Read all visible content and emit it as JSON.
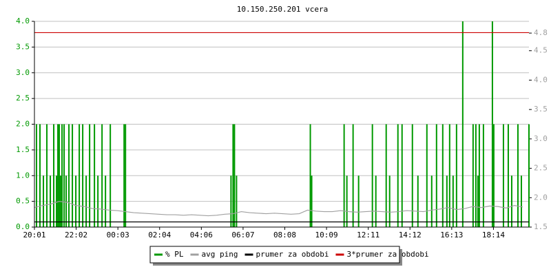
{
  "chart_data": {
    "type": "line",
    "title": "10.150.250.201 vcera",
    "xlim": [
      0,
      1434
    ],
    "xticks": [
      {
        "value": 0,
        "label": "20:01"
      },
      {
        "value": 121,
        "label": "22:02"
      },
      {
        "value": 242,
        "label": "00:03"
      },
      {
        "value": 363,
        "label": "02:04"
      },
      {
        "value": 484,
        "label": "04:06"
      },
      {
        "value": 605,
        "label": "06:07"
      },
      {
        "value": 726,
        "label": "08:08"
      },
      {
        "value": 847,
        "label": "10:09"
      },
      {
        "value": 968,
        "label": "12:11"
      },
      {
        "value": 1089,
        "label": "14:12"
      },
      {
        "value": 1210,
        "label": "16:13"
      },
      {
        "value": 1331,
        "label": "18:14"
      }
    ],
    "ylim": [
      0,
      4
    ],
    "yticks": [
      {
        "value": 0,
        "label": "0.0"
      },
      0.5,
      {
        "value": 1,
        "label": "1.0"
      },
      1.5,
      {
        "value": 2,
        "label": "2.0"
      },
      2.5,
      {
        "value": 3,
        "label": "3.0"
      },
      3.5,
      {
        "value": 4,
        "label": "4.0"
      }
    ],
    "y2lim": [
      1.5,
      5.0
    ],
    "y2ticks": [
      1.5,
      {
        "value": 2,
        "label": "2.0"
      },
      2.5,
      {
        "value": 3,
        "label": "3.0"
      },
      3.5,
      {
        "value": 4,
        "label": "4.0"
      },
      4.5,
      4.8
    ],
    "grid": true,
    "series": [
      {
        "name": "% PL",
        "color": "#009900",
        "style": "impulse",
        "x": [
          6,
          16,
          26,
          36,
          46,
          56,
          64,
          68,
          72,
          76,
          80,
          86,
          92,
          100,
          110,
          120,
          130,
          140,
          150,
          160,
          174,
          184,
          196,
          206,
          220,
          260,
          264,
          570,
          576,
          580,
          586,
          800,
          804,
          898,
          906,
          924,
          940,
          980,
          990,
          1020,
          1030,
          1054,
          1066,
          1096,
          1112,
          1138,
          1152,
          1166,
          1184,
          1196,
          1204,
          1214,
          1224,
          1242,
          1272,
          1280,
          1286,
          1290,
          1302,
          1328,
          1332,
          1360,
          1374,
          1384,
          1402,
          1412,
          1434
        ],
        "values": [
          2,
          2,
          1,
          2,
          1,
          2,
          1,
          2,
          2,
          1,
          2,
          2,
          1,
          2,
          2,
          1,
          2,
          2,
          1,
          2,
          2,
          1,
          2,
          1,
          2,
          2,
          2,
          1,
          2,
          2,
          1,
          2,
          1,
          2,
          1,
          2,
          1,
          2,
          1,
          2,
          1,
          2,
          2,
          2,
          1,
          2,
          1,
          2,
          2,
          1,
          2,
          1,
          2,
          4,
          2,
          2,
          1,
          2,
          2,
          4,
          2,
          2,
          2,
          1,
          2,
          1,
          2
        ]
      },
      {
        "name": "avg ping",
        "color": "#a0a0a0",
        "style": "line",
        "x": [
          0,
          24,
          48,
          72,
          96,
          120,
          144,
          168,
          192,
          216,
          240,
          264,
          288,
          312,
          336,
          360,
          384,
          408,
          432,
          456,
          480,
          504,
          528,
          552,
          576,
          600,
          624,
          648,
          672,
          696,
          720,
          744,
          768,
          792,
          816,
          840,
          864,
          888,
          912,
          936,
          960,
          984,
          1008,
          1032,
          1056,
          1080,
          1104,
          1128,
          1152,
          1176,
          1200,
          1224,
          1248,
          1272,
          1296,
          1320,
          1344,
          1368,
          1392,
          1416
        ],
        "values": [
          0.38,
          0.42,
          0.45,
          0.5,
          0.48,
          0.42,
          0.4,
          0.36,
          0.35,
          0.33,
          0.32,
          0.3,
          0.28,
          0.27,
          0.26,
          0.25,
          0.24,
          0.24,
          0.23,
          0.24,
          0.23,
          0.22,
          0.23,
          0.25,
          0.26,
          0.3,
          0.28,
          0.27,
          0.26,
          0.27,
          0.26,
          0.25,
          0.26,
          0.33,
          0.31,
          0.3,
          0.3,
          0.32,
          0.3,
          0.29,
          0.3,
          0.31,
          0.3,
          0.29,
          0.3,
          0.32,
          0.31,
          0.3,
          0.33,
          0.35,
          0.38,
          0.34,
          0.36,
          0.4,
          0.38,
          0.41,
          0.4,
          0.37,
          0.42,
          0.39
        ]
      },
      {
        "name": "prumer za obdobi",
        "color": "#000000",
        "style": "line",
        "x": [
          0,
          1434
        ],
        "values": [
          0.1,
          0.1
        ]
      },
      {
        "name": "3*prumer za obdobi",
        "color": "#cc0000",
        "style": "line",
        "x": [
          0,
          1434
        ],
        "values": [
          3.78,
          3.78
        ]
      }
    ]
  }
}
